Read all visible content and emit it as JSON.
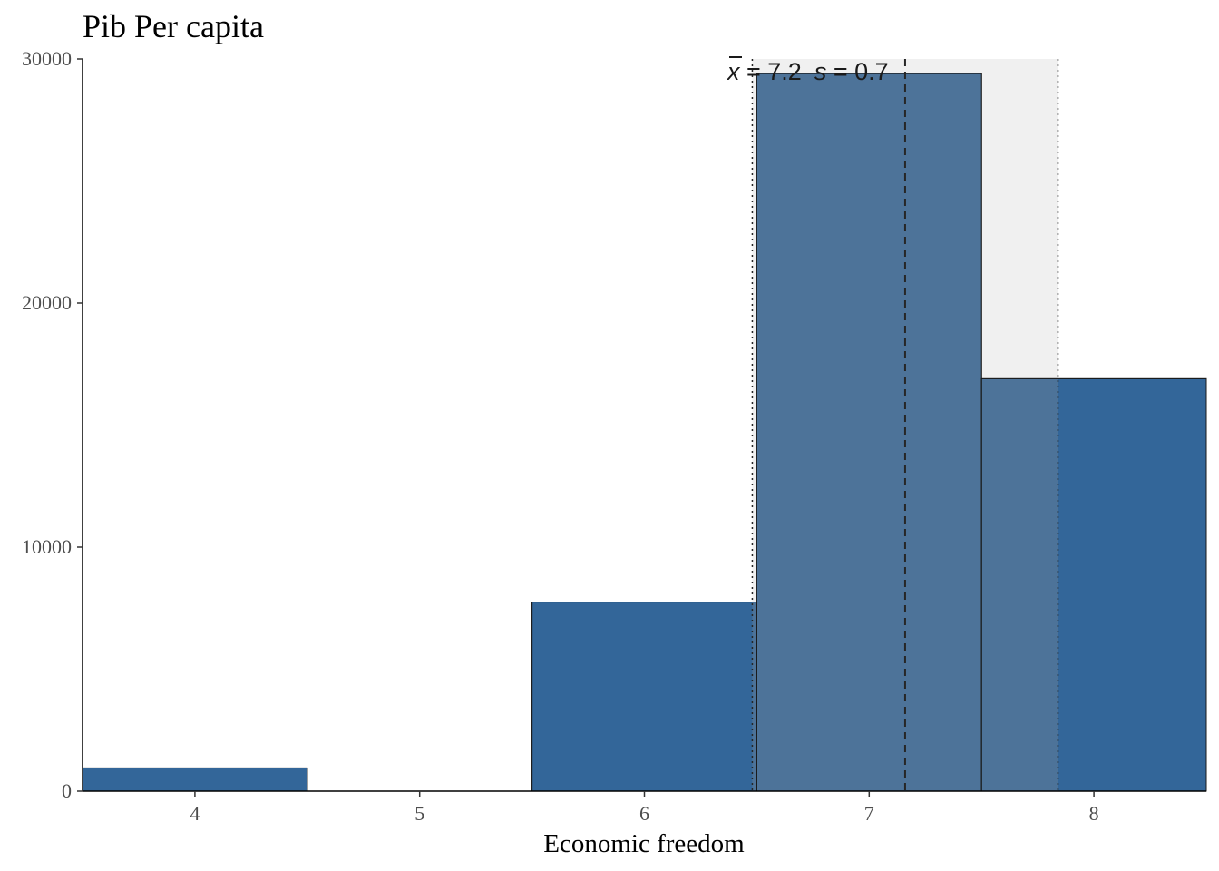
{
  "chart_data": {
    "type": "bar",
    "title": "Pib Per capita",
    "xlabel": "Economic freedom",
    "ylabel": "",
    "x_ticks": [
      4,
      5,
      6,
      7,
      8
    ],
    "x_tick_labels": [
      "4",
      "5",
      "6",
      "7",
      "8"
    ],
    "y_ticks": [
      0,
      10000,
      20000,
      30000
    ],
    "y_tick_labels": [
      "0",
      "10000",
      "20000",
      "30000"
    ],
    "xlim": [
      3.5,
      8.5
    ],
    "ylim": [
      0,
      30000
    ],
    "bin_width": 1,
    "categories": [
      4,
      5,
      6,
      7,
      8
    ],
    "values": [
      950,
      0,
      7750,
      29400,
      16900
    ],
    "mean": 7.16,
    "sd": 0.68,
    "annotation": {
      "mean_symbol": "x",
      "mean_text": " = 7.2",
      "sd_symbol": "s",
      "sd_text": " = 0.7"
    },
    "grid": false,
    "legend": "none",
    "colors": {
      "bar_fill": "#336699",
      "bar_fill_in_band": "#4d7399",
      "band_fill": "#f0f0f0",
      "bar_outline": "#1a1a1a",
      "mean_line": "#262626"
    }
  }
}
